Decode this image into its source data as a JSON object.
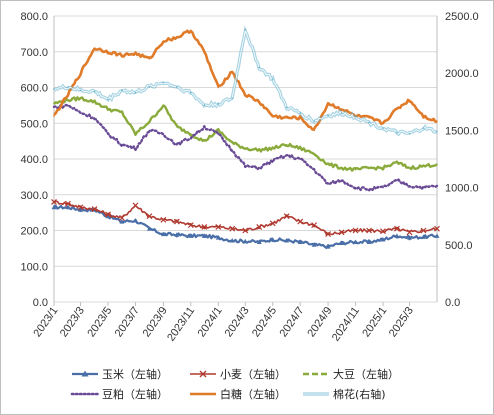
{
  "chart_data": {
    "type": "line",
    "title": "",
    "xlabel": "",
    "ylabel": "",
    "y_left": {
      "min": 0,
      "max": 800,
      "ticks": [
        "0.0",
        "100.0",
        "200.0",
        "300.0",
        "400.0",
        "500.0",
        "600.0",
        "700.0",
        "800.0"
      ]
    },
    "y_right": {
      "min": 0,
      "max": 2500,
      "ticks": [
        "0.0",
        "500.0",
        "1000.0",
        "1500.0",
        "2000.0",
        "2500.0"
      ]
    },
    "x_ticks": [
      "2023/1",
      "2023/3",
      "2023/5",
      "2023/7",
      "2023/9",
      "2023/11",
      "2024/1",
      "2024/3",
      "2024/5",
      "2024/7",
      "2024/9",
      "2024/11",
      "2025/1",
      "2025/3"
    ],
    "x_domain": [
      "2023-01-01",
      "2025-05-01"
    ],
    "grid": true,
    "legend_position": "bottom",
    "series": [
      {
        "name": "玉米（左轴）",
        "axis": "left",
        "color": "#4a6fa8",
        "style": "dash-triangle",
        "dates": [
          "2023-01-01",
          "2023-02-01",
          "2023-03-01",
          "2023-04-01",
          "2023-05-01",
          "2023-06-01",
          "2023-07-01",
          "2023-08-01",
          "2023-09-01",
          "2023-10-01",
          "2023-11-01",
          "2023-12-01",
          "2024-01-01",
          "2024-02-01",
          "2024-03-01",
          "2024-04-01",
          "2024-05-01",
          "2024-06-01",
          "2024-07-01",
          "2024-08-01",
          "2024-09-01",
          "2024-10-01",
          "2024-11-01",
          "2024-12-01",
          "2025-01-01",
          "2025-02-01",
          "2025-03-01",
          "2025-04-01",
          "2025-05-01"
        ],
        "values": [
          265,
          265,
          258,
          258,
          240,
          225,
          228,
          205,
          190,
          188,
          185,
          185,
          180,
          172,
          170,
          168,
          175,
          172,
          168,
          160,
          155,
          165,
          168,
          168,
          175,
          185,
          180,
          182,
          185
        ]
      },
      {
        "name": "小麦（左轴）",
        "axis": "left",
        "color": "#b03a30",
        "style": "x-marker",
        "dates": [
          "2023-01-01",
          "2023-02-01",
          "2023-03-01",
          "2023-04-01",
          "2023-05-01",
          "2023-06-01",
          "2023-07-01",
          "2023-08-01",
          "2023-09-01",
          "2023-10-01",
          "2023-11-01",
          "2023-12-01",
          "2024-01-01",
          "2024-02-01",
          "2024-03-01",
          "2024-04-01",
          "2024-05-01",
          "2024-06-01",
          "2024-07-01",
          "2024-08-01",
          "2024-09-01",
          "2024-10-01",
          "2024-11-01",
          "2024-12-01",
          "2025-01-01",
          "2025-02-01",
          "2025-03-01",
          "2025-04-01",
          "2025-05-01"
        ],
        "values": [
          280,
          275,
          265,
          260,
          245,
          235,
          270,
          240,
          230,
          225,
          215,
          210,
          210,
          205,
          200,
          210,
          220,
          240,
          225,
          215,
          190,
          195,
          200,
          200,
          198,
          205,
          195,
          200,
          205
        ]
      },
      {
        "name": "大豆（左轴）",
        "axis": "left",
        "color": "#8aab3c",
        "style": "dash",
        "dates": [
          "2023-01-01",
          "2023-02-01",
          "2023-03-01",
          "2023-04-01",
          "2023-05-01",
          "2023-06-01",
          "2023-07-01",
          "2023-08-01",
          "2023-09-01",
          "2023-10-01",
          "2023-11-01",
          "2023-12-01",
          "2024-01-01",
          "2024-02-01",
          "2024-03-01",
          "2024-04-01",
          "2024-05-01",
          "2024-06-01",
          "2024-07-01",
          "2024-08-01",
          "2024-09-01",
          "2024-10-01",
          "2024-11-01",
          "2024-12-01",
          "2025-01-01",
          "2025-02-01",
          "2025-03-01",
          "2025-04-01",
          "2025-05-01"
        ],
        "values": [
          555,
          565,
          570,
          560,
          540,
          530,
          470,
          505,
          550,
          490,
          470,
          450,
          480,
          445,
          430,
          425,
          430,
          440,
          430,
          415,
          385,
          375,
          370,
          375,
          375,
          390,
          375,
          380,
          385
        ]
      },
      {
        "name": "豆粕（左轴）",
        "axis": "left",
        "color": "#6a4b96",
        "style": "dot",
        "dates": [
          "2023-01-01",
          "2023-02-01",
          "2023-03-01",
          "2023-04-01",
          "2023-05-01",
          "2023-06-01",
          "2023-07-01",
          "2023-08-01",
          "2023-09-01",
          "2023-10-01",
          "2023-11-01",
          "2023-12-01",
          "2024-01-01",
          "2024-02-01",
          "2024-03-01",
          "2024-04-01",
          "2024-05-01",
          "2024-06-01",
          "2024-07-01",
          "2024-08-01",
          "2024-09-01",
          "2024-10-01",
          "2024-11-01",
          "2024-12-01",
          "2025-01-01",
          "2025-02-01",
          "2025-03-01",
          "2025-04-01",
          "2025-05-01"
        ],
        "values": [
          545,
          550,
          530,
          515,
          470,
          440,
          430,
          480,
          470,
          440,
          460,
          490,
          470,
          425,
          380,
          375,
          395,
          410,
          400,
          370,
          330,
          340,
          320,
          315,
          320,
          340,
          325,
          320,
          325
        ]
      },
      {
        "name": "白糖（左轴）",
        "axis": "left",
        "color": "#e07b2a",
        "style": "solid-thick",
        "dates": [
          "2023-01-01",
          "2023-02-01",
          "2023-03-01",
          "2023-04-01",
          "2023-05-01",
          "2023-06-01",
          "2023-07-01",
          "2023-08-01",
          "2023-09-01",
          "2023-10-01",
          "2023-11-01",
          "2023-12-01",
          "2024-01-01",
          "2024-02-01",
          "2024-03-01",
          "2024-04-01",
          "2024-05-01",
          "2024-06-01",
          "2024-07-01",
          "2024-08-01",
          "2024-09-01",
          "2024-10-01",
          "2024-11-01",
          "2024-12-01",
          "2025-01-01",
          "2025-02-01",
          "2025-03-01",
          "2025-04-01",
          "2025-05-01"
        ],
        "values": [
          520,
          580,
          640,
          710,
          700,
          690,
          695,
          680,
          730,
          740,
          760,
          700,
          600,
          645,
          580,
          560,
          520,
          515,
          515,
          480,
          555,
          540,
          520,
          515,
          500,
          540,
          565,
          520,
          505
        ]
      },
      {
        "name": "棉花(右轴)",
        "axis": "right",
        "color": "#62b1cc",
        "style": "solid-double",
        "dates": [
          "2023-01-01",
          "2023-02-01",
          "2023-03-01",
          "2023-04-01",
          "2023-05-01",
          "2023-06-01",
          "2023-07-01",
          "2023-08-01",
          "2023-09-01",
          "2023-10-01",
          "2023-11-01",
          "2023-12-01",
          "2024-01-01",
          "2024-02-01",
          "2024-03-01",
          "2024-04-01",
          "2024-05-01",
          "2024-06-01",
          "2024-07-01",
          "2024-08-01",
          "2024-09-01",
          "2024-10-01",
          "2024-11-01",
          "2024-12-01",
          "2025-01-01",
          "2025-02-01",
          "2025-03-01",
          "2025-04-01",
          "2025-05-01"
        ],
        "values": [
          1860,
          1880,
          1850,
          1840,
          1770,
          1850,
          1830,
          1880,
          1920,
          1880,
          1830,
          1720,
          1730,
          1780,
          2380,
          2050,
          1950,
          1700,
          1650,
          1580,
          1630,
          1650,
          1620,
          1570,
          1520,
          1480,
          1470,
          1520,
          1490
        ]
      }
    ]
  }
}
